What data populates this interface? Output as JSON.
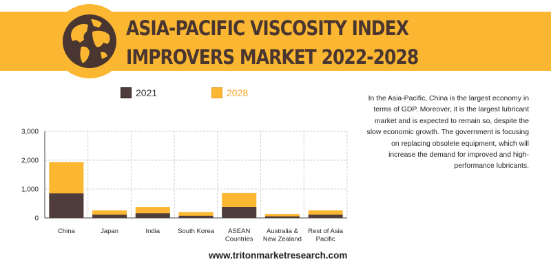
{
  "title_lines": [
    "ASIA-PACIFIC VISCOSITY INDEX",
    "IMPROVERS MARKET 2022-2028"
  ],
  "description": "In the Asia-Pacific, China is the largest economy in terms of GDP. Moreover, it is the largest lubricant market and is expected to remain so, despite the slow economic growth. The government is focusing on replacing obsolete equipment, which will increase the demand for improved and high-performance lubricants.",
  "website": "www.tritonmarketresearch.com",
  "colors": {
    "banner": "#fbb731",
    "dark": "#4a3630",
    "series_2021": "#4e3d3a",
    "series_2028": "#fbb731"
  },
  "legend": [
    {
      "label": "2021",
      "color": "#4e3d3a",
      "text_color": "#333333"
    },
    {
      "label": "2028",
      "color": "#fbb731",
      "text_color": "#f5a623"
    }
  ],
  "chart_data": {
    "type": "bar",
    "stacked": true,
    "title": "",
    "xlabel": "",
    "ylabel": "",
    "ylim": [
      0,
      3000
    ],
    "yticks": [
      "0",
      "1,000",
      "2,000",
      "3,000"
    ],
    "grid": true,
    "legend_position": "top",
    "categories": [
      [
        "China"
      ],
      [
        "Japan"
      ],
      [
        "India"
      ],
      [
        "South Korea"
      ],
      [
        "ASEAN",
        "Countries"
      ],
      [
        "Australia &",
        "New Zealand"
      ],
      [
        "Rest of Asia",
        "Pacific"
      ]
    ],
    "series": [
      {
        "name": "2021",
        "values": [
          850,
          110,
          160,
          75,
          380,
          55,
          110
        ]
      },
      {
        "name": "2028",
        "values": [
          1930,
          260,
          380,
          205,
          860,
          140,
          260
        ]
      }
    ]
  }
}
